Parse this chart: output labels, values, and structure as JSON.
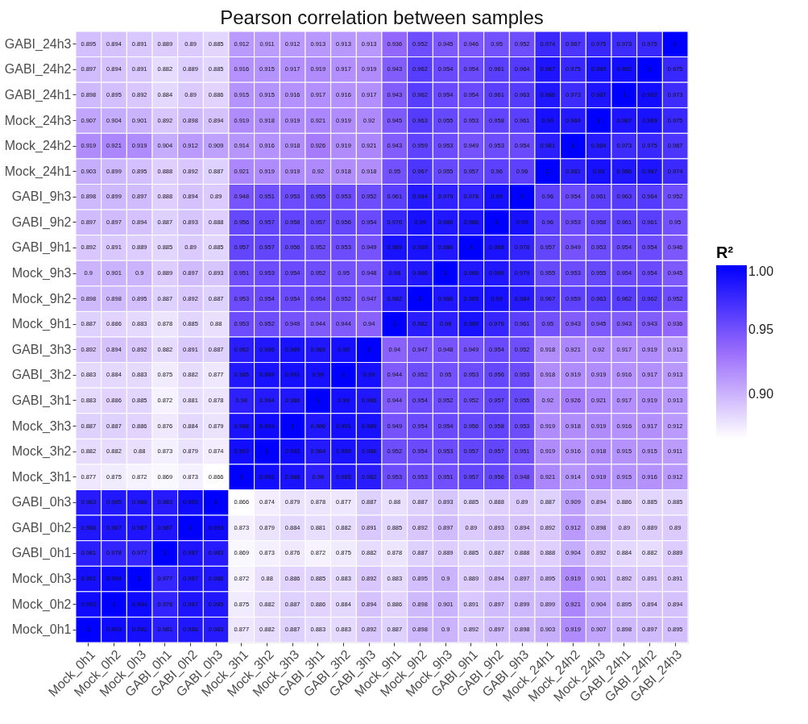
{
  "chart_data": {
    "type": "heatmap",
    "title": "Pearson correlation between samples",
    "clabel": "R²",
    "categories": [
      "Mock_0h1",
      "Mock_0h2",
      "Mock_0h3",
      "GABI_0h1",
      "GABI_0h2",
      "GABI_0h3",
      "Mock_3h1",
      "Mock_3h2",
      "Mock_3h3",
      "GABI_3h1",
      "GABI_3h2",
      "GABI_3h3",
      "Mock_9h1",
      "Mock_9h2",
      "Mock_9h3",
      "GABI_9h1",
      "GABI_9h2",
      "GABI_9h3",
      "Mock_24h1",
      "Mock_24h2",
      "Mock_24h3",
      "GABI_24h1",
      "GABI_24h2",
      "GABI_24h3"
    ],
    "y_categories": [
      "GABI_24h3",
      "GABI_24h2",
      "GABI_24h1",
      "Mock_24h3",
      "Mock_24h2",
      "Mock_24h1",
      "GABI_9h3",
      "GABI_9h2",
      "GABI_9h1",
      "Mock_9h3",
      "Mock_9h2",
      "Mock_9h1",
      "GABI_3h3",
      "GABI_3h2",
      "GABI_3h1",
      "Mock_3h3",
      "Mock_3h2",
      "Mock_3h1",
      "GABI_0h3",
      "GABI_0h2",
      "GABI_0h1",
      "Mock_0h3",
      "Mock_0h2",
      "Mock_0h1"
    ],
    "cells": [
      [
        0.895,
        0.894,
        0.891,
        0.889,
        0.89,
        0.885,
        0.912,
        0.911,
        0.912,
        0.913,
        0.913,
        0.913,
        0.936,
        0.952,
        0.945,
        0.946,
        0.95,
        0.952,
        0.974,
        0.967,
        0.975,
        0.973,
        0.975,
        1
      ],
      [
        0.897,
        0.894,
        0.891,
        0.882,
        0.889,
        0.885,
        0.916,
        0.915,
        0.917,
        0.919,
        0.917,
        0.919,
        0.943,
        0.962,
        0.954,
        0.954,
        0.961,
        0.964,
        0.987,
        0.975,
        0.989,
        0.992,
        1,
        0.975
      ],
      [
        0.898,
        0.895,
        0.892,
        0.884,
        0.89,
        0.886,
        0.915,
        0.915,
        0.916,
        0.917,
        0.916,
        0.917,
        0.943,
        0.962,
        0.954,
        0.954,
        0.961,
        0.963,
        0.986,
        0.973,
        0.987,
        1,
        0.992,
        0.973
      ],
      [
        0.907,
        0.904,
        0.901,
        0.892,
        0.898,
        0.894,
        0.919,
        0.918,
        0.919,
        0.921,
        0.919,
        0.92,
        0.945,
        0.963,
        0.955,
        0.953,
        0.958,
        0.961,
        0.99,
        0.984,
        1,
        0.987,
        0.989,
        0.975
      ],
      [
        0.919,
        0.921,
        0.919,
        0.904,
        0.912,
        0.909,
        0.914,
        0.916,
        0.918,
        0.926,
        0.919,
        0.921,
        0.943,
        0.959,
        0.953,
        0.949,
        0.953,
        0.954,
        0.981,
        1,
        0.984,
        0.973,
        0.975,
        0.967
      ],
      [
        0.903,
        0.899,
        0.895,
        0.888,
        0.892,
        0.887,
        0.921,
        0.919,
        0.919,
        0.92,
        0.918,
        0.918,
        0.95,
        0.967,
        0.955,
        0.957,
        0.96,
        0.96,
        1,
        0.981,
        0.99,
        0.986,
        0.987,
        0.974
      ],
      [
        0.898,
        0.899,
        0.897,
        0.888,
        0.894,
        0.89,
        0.948,
        0.951,
        0.953,
        0.955,
        0.953,
        0.952,
        0.961,
        0.984,
        0.979,
        0.978,
        0.99,
        1,
        0.96,
        0.954,
        0.961,
        0.963,
        0.964,
        0.952
      ],
      [
        0.897,
        0.897,
        0.894,
        0.887,
        0.893,
        0.888,
        0.956,
        0.957,
        0.958,
        0.957,
        0.956,
        0.954,
        0.976,
        0.99,
        0.986,
        0.988,
        1,
        0.99,
        0.96,
        0.953,
        0.958,
        0.961,
        0.961,
        0.95
      ],
      [
        0.892,
        0.891,
        0.889,
        0.885,
        0.89,
        0.885,
        0.957,
        0.957,
        0.956,
        0.952,
        0.953,
        0.949,
        0.989,
        0.989,
        0.986,
        1,
        0.988,
        0.978,
        0.957,
        0.949,
        0.953,
        0.954,
        0.954,
        0.946
      ],
      [
        0.9,
        0.901,
        0.9,
        0.889,
        0.897,
        0.893,
        0.951,
        0.953,
        0.954,
        0.952,
        0.95,
        0.948,
        0.98,
        0.986,
        1,
        0.986,
        0.986,
        0.979,
        0.955,
        0.953,
        0.955,
        0.954,
        0.954,
        0.945
      ],
      [
        0.898,
        0.898,
        0.895,
        0.887,
        0.892,
        0.887,
        0.953,
        0.954,
        0.954,
        0.954,
        0.952,
        0.947,
        0.982,
        1,
        0.986,
        0.989,
        0.99,
        0.984,
        0.967,
        0.959,
        0.963,
        0.962,
        0.962,
        0.952
      ],
      [
        0.887,
        0.886,
        0.883,
        0.878,
        0.885,
        0.88,
        0.953,
        0.952,
        0.949,
        0.944,
        0.944,
        0.94,
        1,
        0.982,
        0.98,
        0.989,
        0.976,
        0.961,
        0.95,
        0.943,
        0.945,
        0.943,
        0.943,
        0.936
      ],
      [
        0.892,
        0.894,
        0.892,
        0.882,
        0.891,
        0.887,
        0.982,
        0.986,
        0.989,
        0.986,
        0.99,
        1,
        0.94,
        0.947,
        0.948,
        0.949,
        0.954,
        0.952,
        0.918,
        0.921,
        0.92,
        0.917,
        0.919,
        0.913
      ],
      [
        0.883,
        0.884,
        0.883,
        0.875,
        0.882,
        0.877,
        0.985,
        0.989,
        0.991,
        0.99,
        1,
        0.99,
        0.944,
        0.952,
        0.95,
        0.953,
        0.956,
        0.953,
        0.918,
        0.919,
        0.919,
        0.916,
        0.917,
        0.913
      ],
      [
        0.883,
        0.886,
        0.885,
        0.872,
        0.881,
        0.878,
        0.98,
        0.984,
        0.986,
        1,
        0.99,
        0.986,
        0.944,
        0.954,
        0.952,
        0.952,
        0.957,
        0.955,
        0.92,
        0.926,
        0.921,
        0.917,
        0.919,
        0.913
      ],
      [
        0.887,
        0.887,
        0.886,
        0.876,
        0.884,
        0.879,
        0.988,
        0.993,
        1,
        0.986,
        0.991,
        0.989,
        0.949,
        0.954,
        0.954,
        0.956,
        0.958,
        0.953,
        0.919,
        0.918,
        0.919,
        0.916,
        0.917,
        0.912
      ],
      [
        0.882,
        0.882,
        0.88,
        0.873,
        0.879,
        0.874,
        0.992,
        1,
        0.993,
        0.984,
        0.989,
        0.986,
        0.952,
        0.954,
        0.953,
        0.957,
        0.957,
        0.951,
        0.919,
        0.916,
        0.918,
        0.915,
        0.915,
        0.911
      ],
      [
        0.877,
        0.875,
        0.872,
        0.869,
        0.873,
        0.866,
        1,
        0.992,
        0.988,
        0.98,
        0.985,
        0.982,
        0.953,
        0.953,
        0.951,
        0.957,
        0.956,
        0.948,
        0.921,
        0.914,
        0.919,
        0.915,
        0.916,
        0.912
      ],
      [
        0.983,
        0.985,
        0.986,
        0.983,
        0.993,
        1,
        0.866,
        0.874,
        0.879,
        0.878,
        0.877,
        0.887,
        0.88,
        0.887,
        0.893,
        0.885,
        0.888,
        0.89,
        0.887,
        0.909,
        0.894,
        0.886,
        0.885,
        0.885
      ],
      [
        0.986,
        0.987,
        0.987,
        0.987,
        1,
        0.993,
        0.873,
        0.879,
        0.884,
        0.881,
        0.882,
        0.891,
        0.885,
        0.892,
        0.897,
        0.89,
        0.893,
        0.894,
        0.892,
        0.912,
        0.898,
        0.89,
        0.889,
        0.89
      ],
      [
        0.981,
        0.978,
        0.977,
        1,
        0.987,
        0.983,
        0.869,
        0.873,
        0.876,
        0.872,
        0.875,
        0.882,
        0.878,
        0.887,
        0.889,
        0.885,
        0.887,
        0.888,
        0.888,
        0.904,
        0.892,
        0.884,
        0.882,
        0.889
      ],
      [
        0.991,
        0.994,
        1,
        0.977,
        0.987,
        0.986,
        0.872,
        0.88,
        0.886,
        0.885,
        0.883,
        0.892,
        0.883,
        0.895,
        0.9,
        0.889,
        0.894,
        0.897,
        0.895,
        0.919,
        0.901,
        0.892,
        0.891,
        0.891
      ],
      [
        0.993,
        1,
        0.994,
        0.978,
        0.987,
        0.985,
        0.875,
        0.882,
        0.887,
        0.886,
        0.884,
        0.894,
        0.886,
        0.898,
        0.901,
        0.891,
        0.897,
        0.899,
        0.899,
        0.921,
        0.904,
        0.895,
        0.894,
        0.894
      ],
      [
        1,
        0.993,
        0.991,
        0.981,
        0.986,
        0.983,
        0.877,
        0.882,
        0.887,
        0.883,
        0.883,
        0.892,
        0.887,
        0.898,
        0.9,
        0.892,
        0.897,
        0.898,
        0.903,
        0.919,
        0.907,
        0.898,
        0.897,
        0.895
      ]
    ],
    "clim": [
      0.866,
      1
    ],
    "cticks": [
      {
        "value": 0.9,
        "label": "0.90"
      },
      {
        "value": 0.95,
        "label": "0.95"
      },
      {
        "value": 1,
        "label": "1.00"
      }
    ],
    "data_labels": true
  }
}
